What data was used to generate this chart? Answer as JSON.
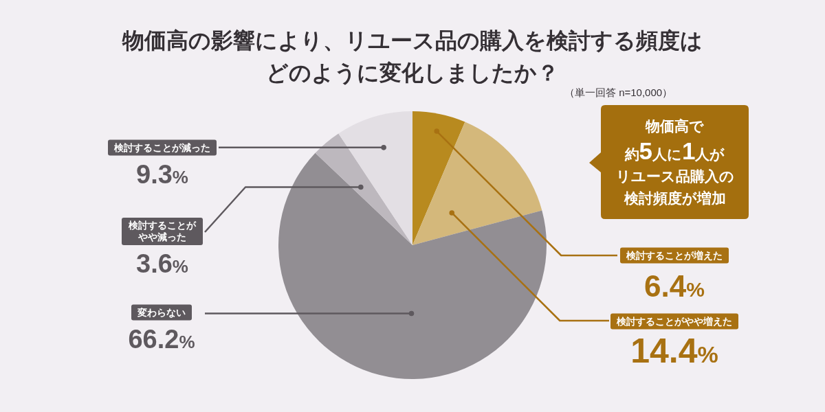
{
  "chart_data": {
    "type": "pie",
    "title": "物価高の影響により、リユース品の購入を検討する頻度はどのように変化しましたか？",
    "subtitle": "（単一回答 n=10,000）",
    "categories": [
      "検討することが増えた",
      "検討することがやや増えた",
      "変わらない",
      "検討することがやや減った",
      "検討することが減った"
    ],
    "values": [
      6.4,
      14.4,
      66.2,
      3.6,
      9.3
    ],
    "colors": [
      "#b88a1f",
      "#d4b87b",
      "#928e93",
      "#bdb8be",
      "#e3dfe4"
    ],
    "value_labels": [
      "6.4%",
      "14.4%",
      "66.2%",
      "3.6%",
      "9.3%"
    ],
    "annotations": [
      "物価高で約5人に1人がリユース品購入の検討頻度が増加"
    ]
  }
}
